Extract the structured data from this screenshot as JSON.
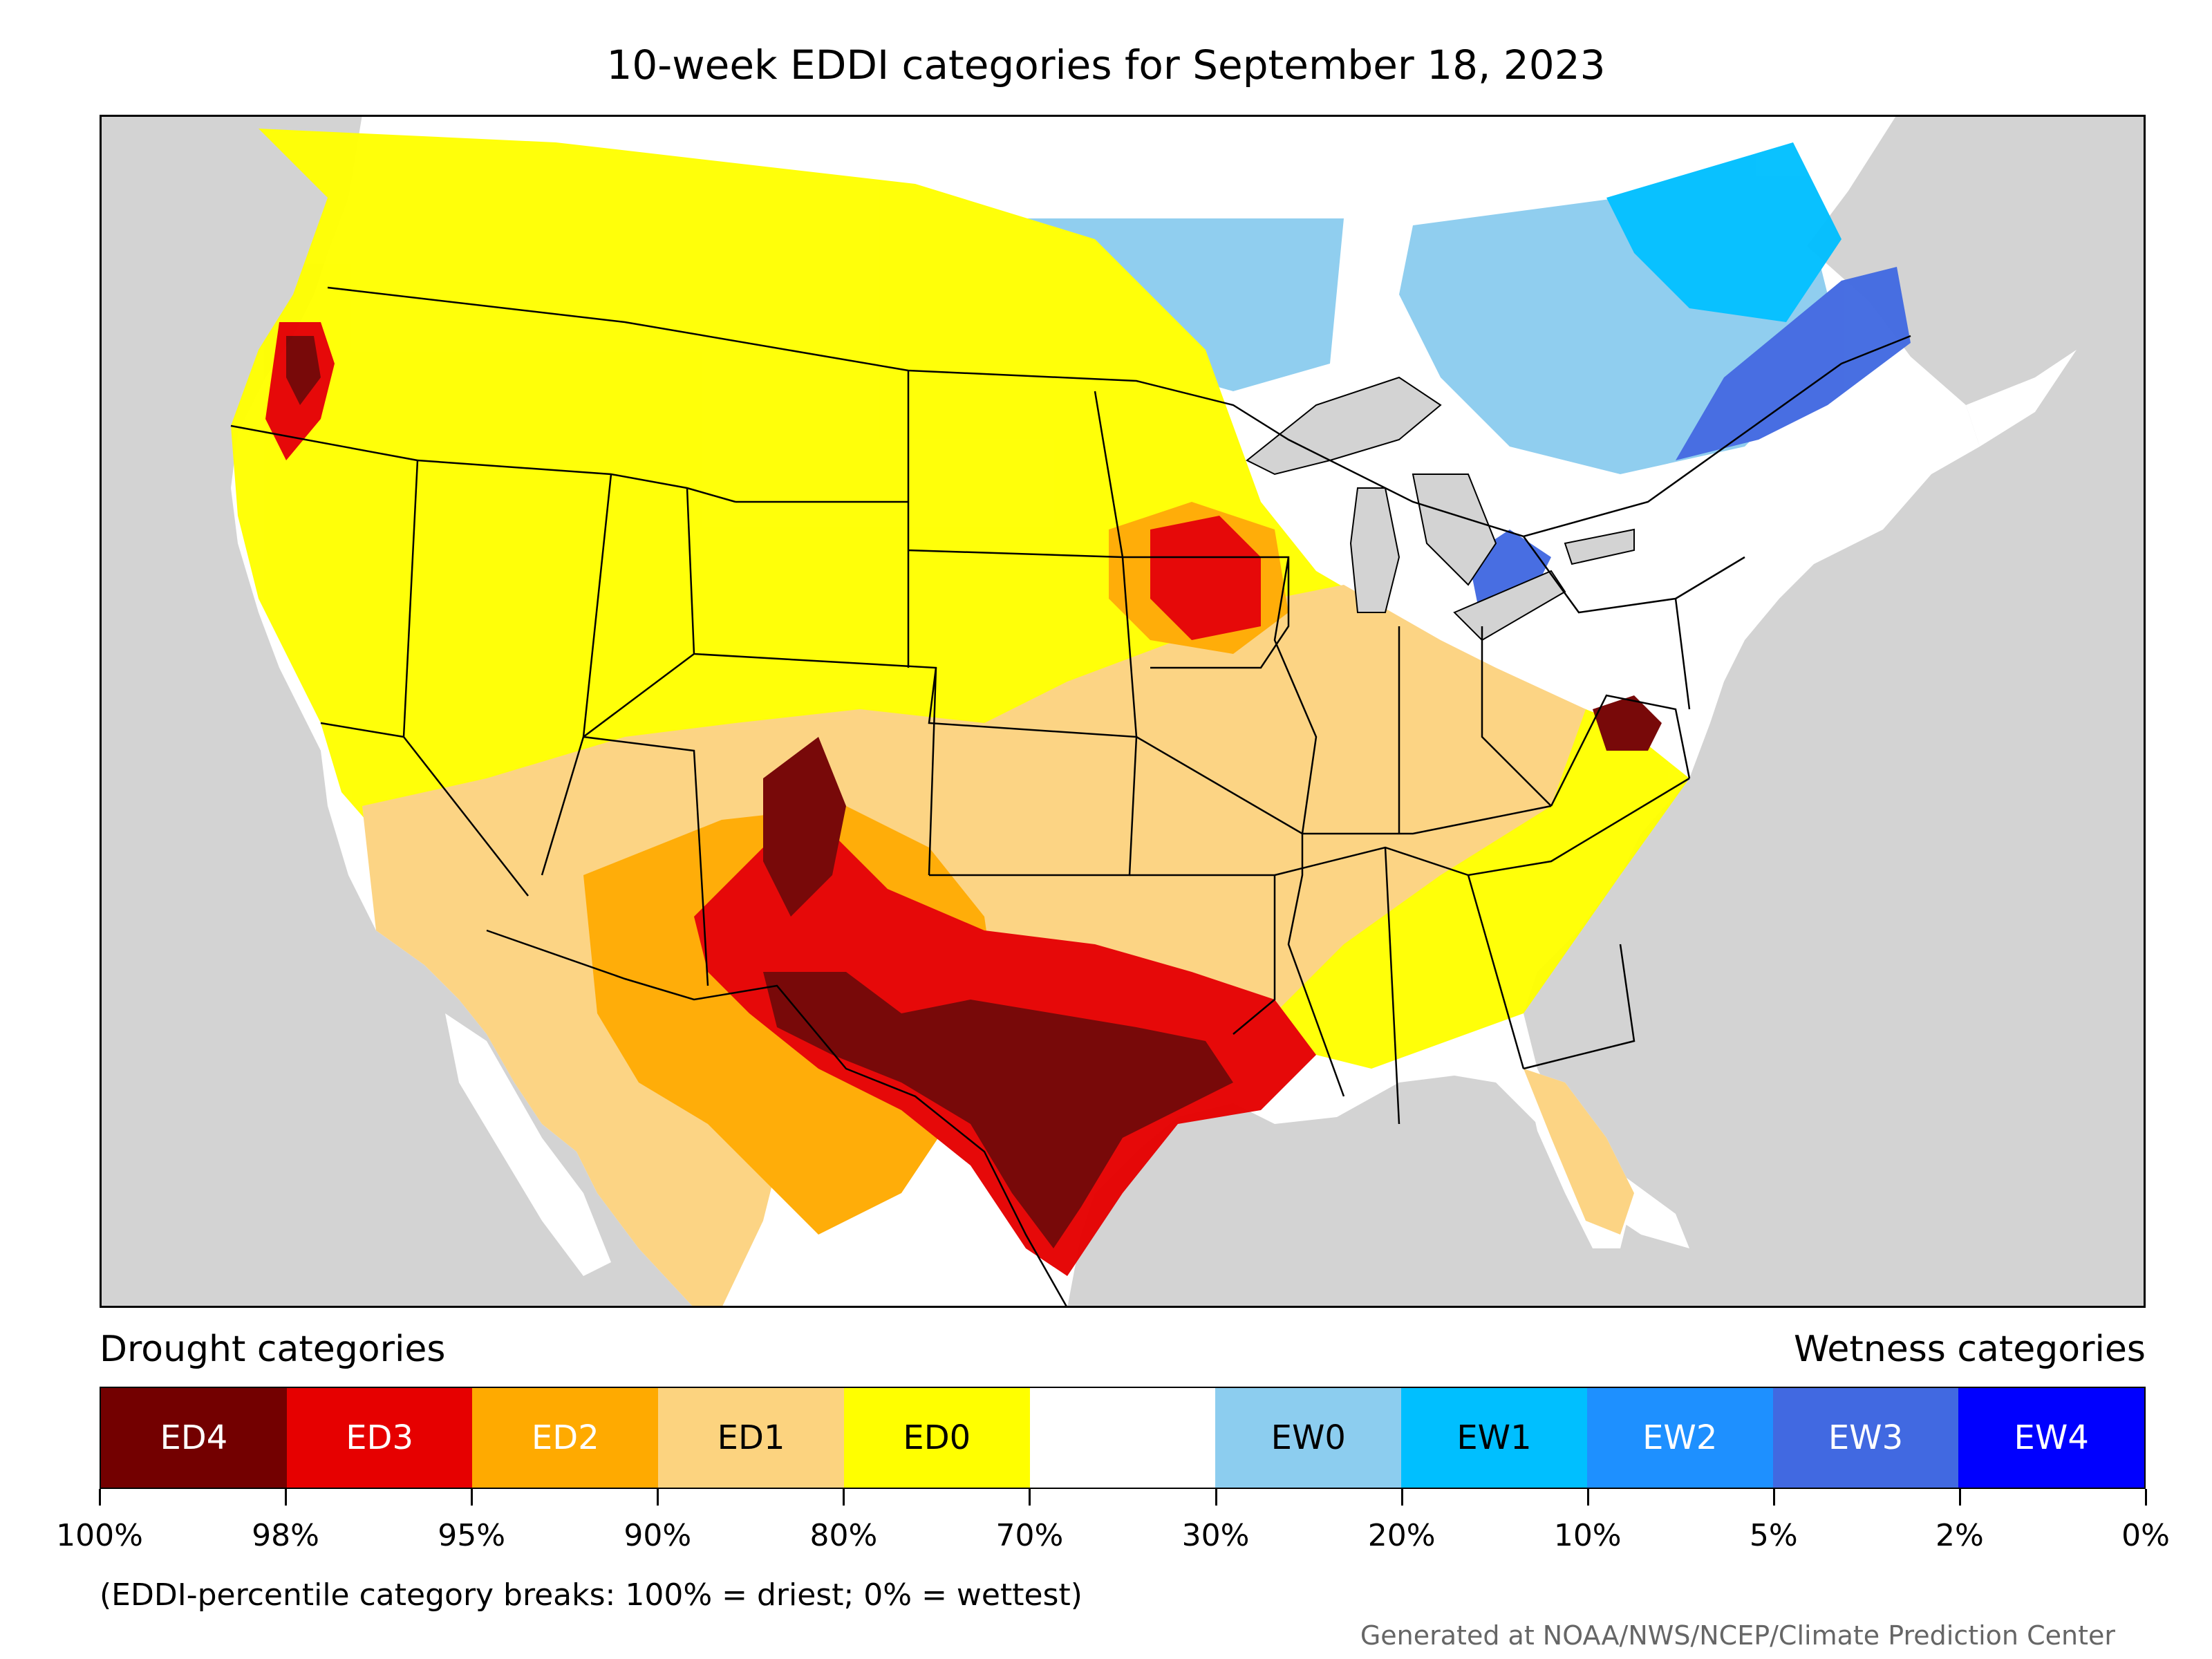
{
  "title": "10-week EDDI categories for September 18, 2023",
  "legend": {
    "left_heading": "Drought categories",
    "right_heading": "Wetness categories",
    "categories": [
      {
        "label": "ED4",
        "color": "#730000",
        "text_color": "#ffffff"
      },
      {
        "label": "ED3",
        "color": "#e60000",
        "text_color": "#ffffff"
      },
      {
        "label": "ED2",
        "color": "#ffaa00",
        "text_color": "#ffffff"
      },
      {
        "label": "ED1",
        "color": "#fcd37f",
        "text_color": "#000000"
      },
      {
        "label": "ED0",
        "color": "#ffff00",
        "text_color": "#000000"
      },
      {
        "label": "",
        "color": "#ffffff",
        "text_color": "#000000"
      },
      {
        "label": "EW0",
        "color": "#8ccdef",
        "text_color": "#000000"
      },
      {
        "label": "EW1",
        "color": "#00bfff",
        "text_color": "#000000"
      },
      {
        "label": "EW2",
        "color": "#1e90ff",
        "text_color": "#ffffff"
      },
      {
        "label": "EW3",
        "color": "#4169e1",
        "text_color": "#ffffff"
      },
      {
        "label": "EW4",
        "color": "#0000ff",
        "text_color": "#ffffff"
      }
    ],
    "breaks": [
      "100%",
      "98%",
      "95%",
      "90%",
      "80%",
      "70%",
      "30%",
      "20%",
      "10%",
      "5%",
      "2%",
      "0%"
    ]
  },
  "note": "(EDDI-percentile category breaks: 100% = driest; 0% = wettest)",
  "credit": "Generated at NOAA/NWS/NCEP/Climate Prediction Center",
  "map_colors": {
    "background": "#d3d3d3",
    "land": "#ffffff",
    "border": "#000000"
  }
}
